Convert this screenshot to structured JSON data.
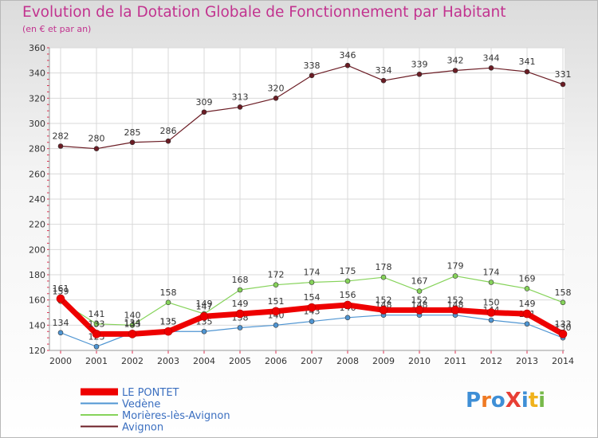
{
  "header": {
    "title": "Evolution de la Dotation Globale de Fonctionnement par Habitant",
    "subtitle": "(en € et par an)"
  },
  "logo": {
    "text": "ProXiti",
    "colors": [
      "#3f8fd6",
      "#ef7a24",
      "#3f8fd6",
      "#e83f35",
      "#3f8fd6",
      "#f0b21c",
      "#77b94a"
    ]
  },
  "chart_data": {
    "type": "line",
    "title": "Evolution de la Dotation Globale de Fonctionnement par Habitant",
    "subtitle": "(en € et par an)",
    "xlabel": "",
    "ylabel": "",
    "x": [
      "2000",
      "2001",
      "2002",
      "2003",
      "2004",
      "2005",
      "2006",
      "2007",
      "2008",
      "2009",
      "2010",
      "2011",
      "2012",
      "2013",
      "2014"
    ],
    "ylim": [
      120,
      360
    ],
    "yticks": [
      120,
      140,
      160,
      180,
      200,
      220,
      240,
      260,
      280,
      300,
      320,
      340,
      360
    ],
    "grid": true,
    "legend": "bottom-left",
    "series": [
      {
        "name": "Avignon",
        "color": "#6b1c24",
        "width": 1.2,
        "marker": 3,
        "values": [
          282,
          280,
          285,
          286,
          309,
          313,
          320,
          338,
          346,
          334,
          339,
          342,
          344,
          341,
          331
        ],
        "labels": [
          "282",
          "280",
          "285",
          "286",
          "309",
          "313",
          "320",
          "338",
          "346",
          "334",
          "339",
          "342",
          "344",
          "341",
          "331"
        ]
      },
      {
        "name": "Morières-lès-Avignon",
        "color": "#86d35a",
        "width": 1.2,
        "marker": 3,
        "values": [
          159,
          141,
          140,
          158,
          149,
          168,
          172,
          174,
          175,
          178,
          167,
          179,
          174,
          169,
          158
        ],
        "labels": [
          "159",
          "141",
          "140",
          "158",
          "149",
          "168",
          "172",
          "174",
          "175",
          "178",
          "167",
          "179",
          "174",
          "169",
          "158"
        ]
      },
      {
        "name": "Vedène",
        "color": "#4f95d2",
        "width": 1.2,
        "marker": 3,
        "values": [
          134,
          123,
          134,
          135,
          135,
          138,
          140,
          143,
          146,
          148,
          148,
          148,
          144,
          141,
          130
        ],
        "labels": [
          "134",
          "123",
          "134",
          "135",
          "135",
          "138",
          "140",
          "143",
          "146",
          "148",
          "148",
          "148",
          "144",
          "141",
          "130"
        ]
      },
      {
        "name": "LE PONTET",
        "color": "#ee0000",
        "width": 7,
        "marker": 5,
        "values": [
          161,
          133,
          133,
          135,
          147,
          149,
          151,
          154,
          156,
          152,
          152,
          152,
          150,
          149,
          133
        ],
        "labels": [
          "161",
          "133",
          "133",
          "135",
          "147",
          "149",
          "151",
          "154",
          "156",
          "152",
          "152",
          "152",
          "150",
          "149",
          "133"
        ]
      }
    ],
    "legend_entries": [
      {
        "name": "LE PONTET",
        "color": "#ee0000",
        "thick": true
      },
      {
        "name": "Vedène",
        "color": "#4f95d2",
        "thick": false
      },
      {
        "name": "Morières-lès-Avignon",
        "color": "#86d35a",
        "thick": false
      },
      {
        "name": "Avignon",
        "color": "#6b1c24",
        "thick": false
      }
    ]
  }
}
